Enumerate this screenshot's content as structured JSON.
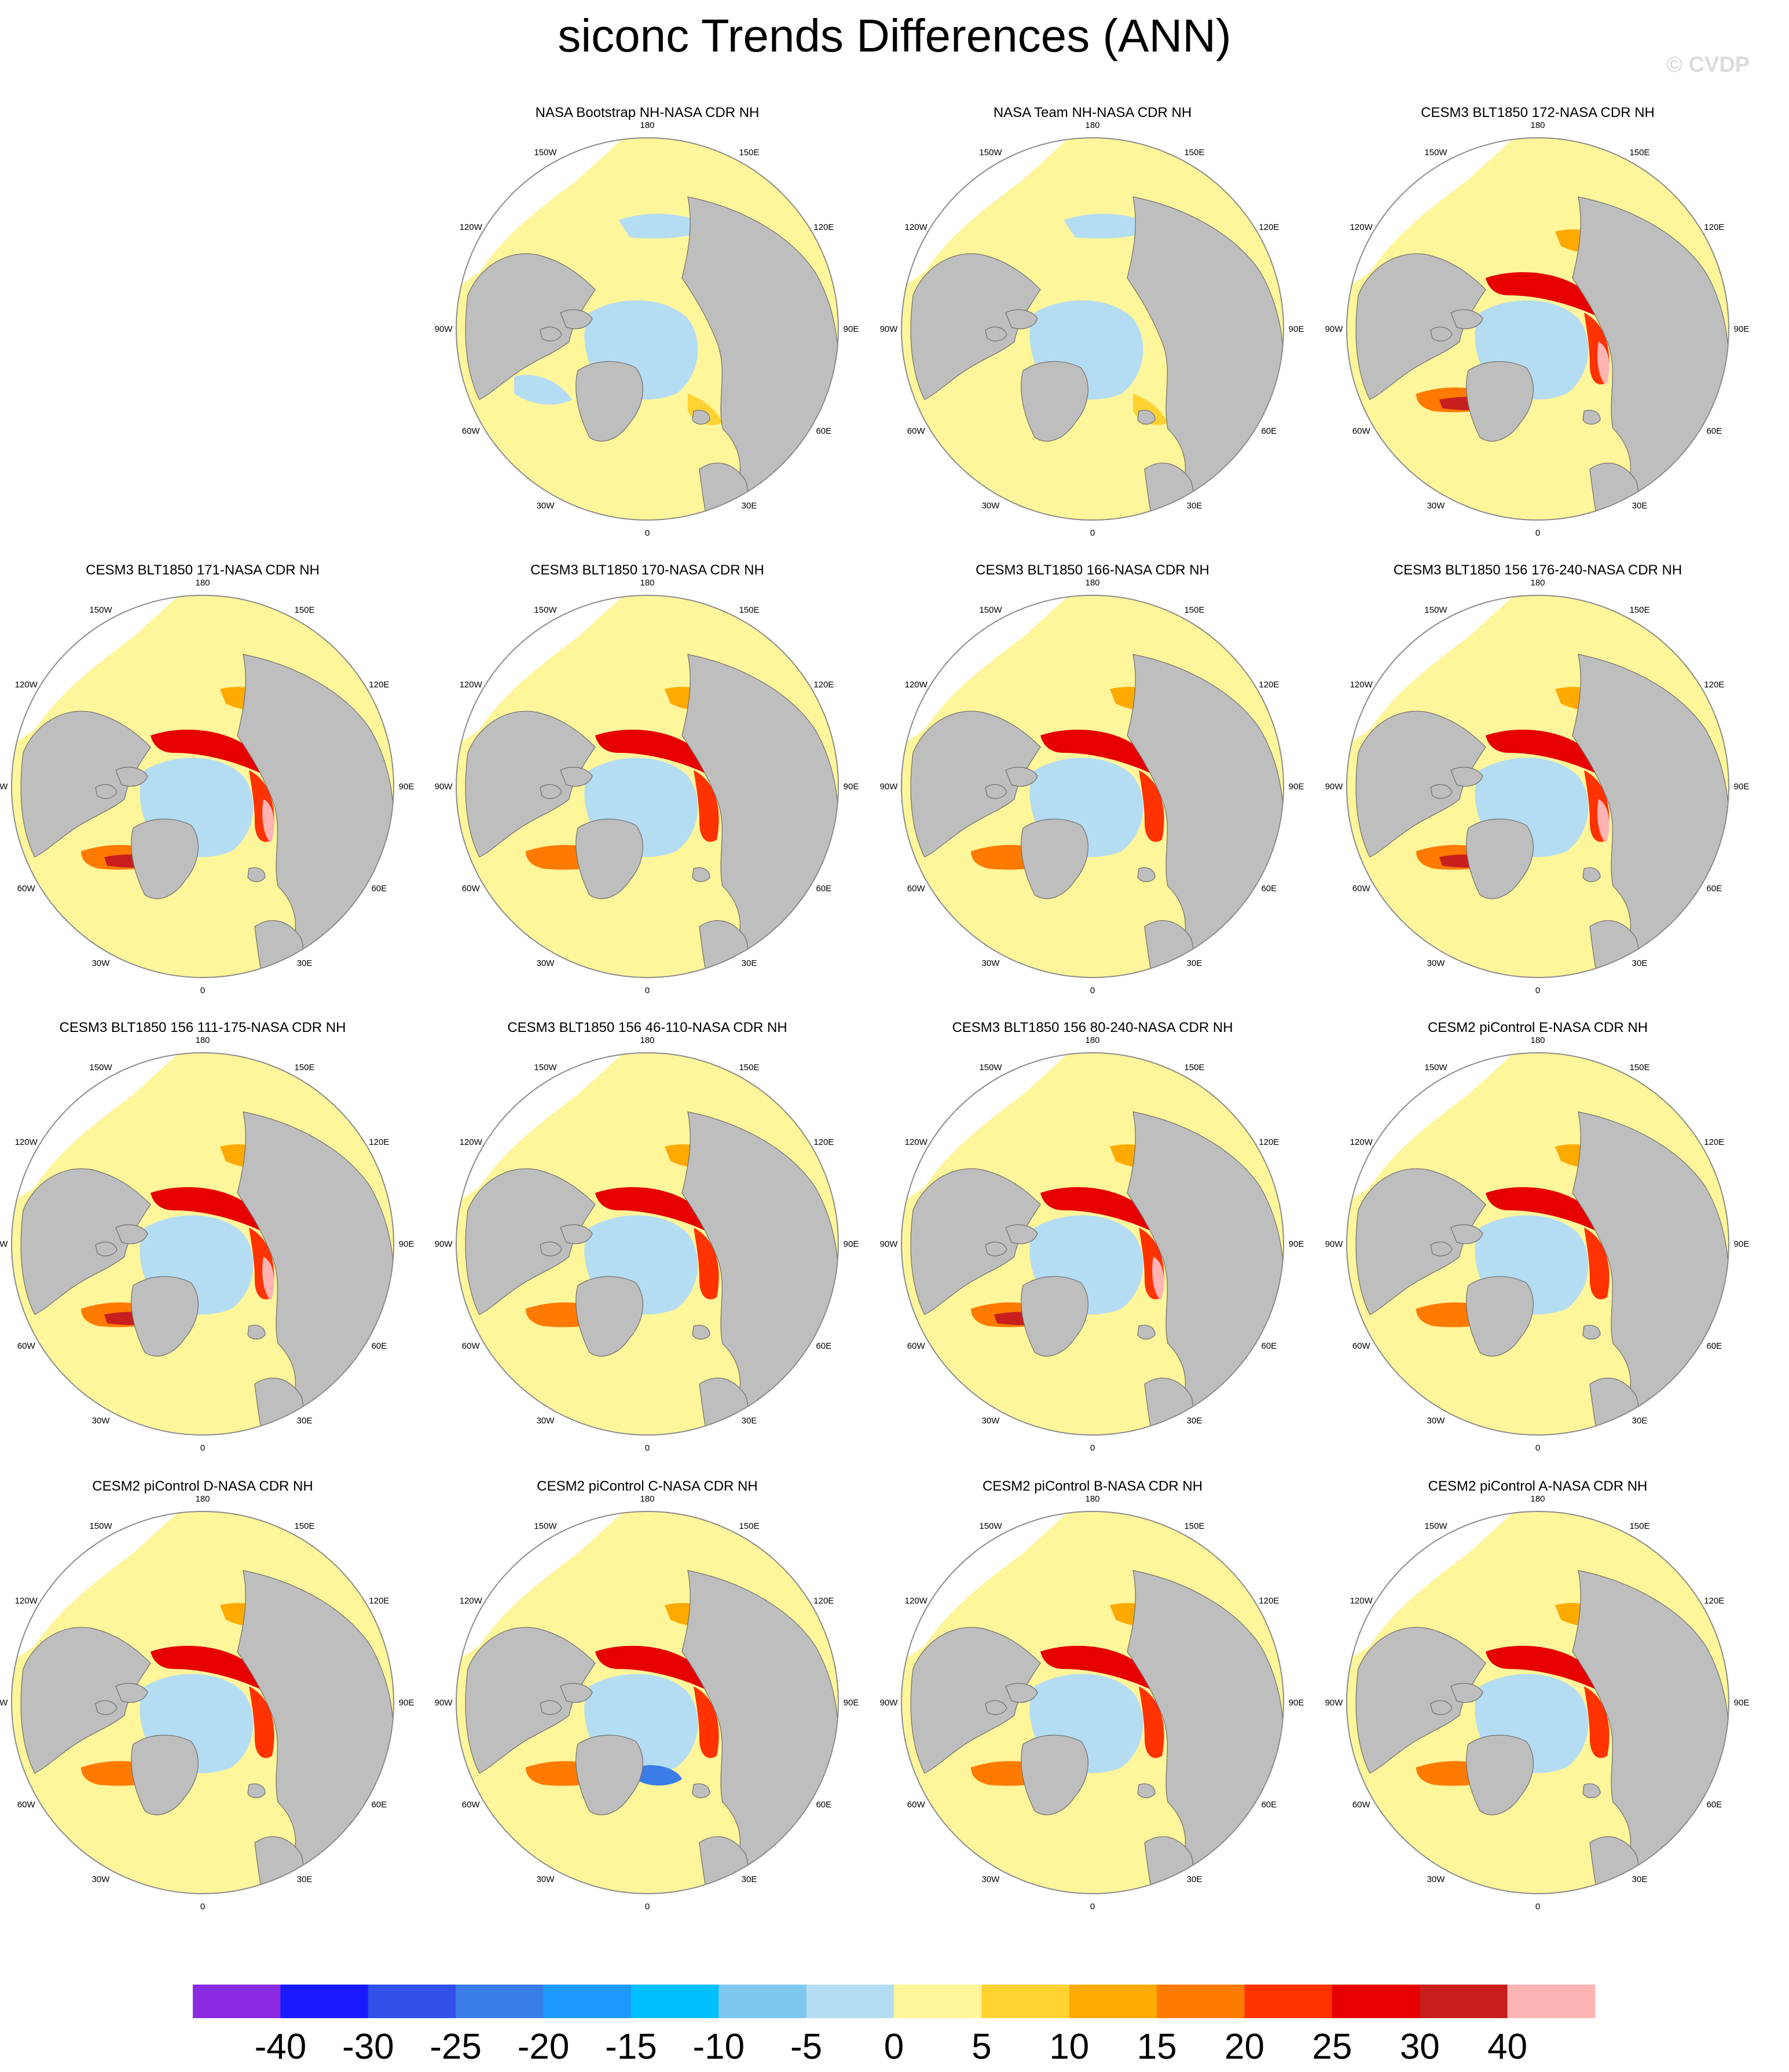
{
  "title": "siconc Trends Differences (ANN)",
  "watermark": "© CVDP",
  "colors": {
    "land": "#bebebe",
    "ocean_open": "#ffffff",
    "coast": "#6e6e6e",
    "frame": "#8c8c8c",
    "zero_pos": "#fff59a",
    "zero_neg": "#b4ddf3"
  },
  "panels": [
    {
      "title": "NASA Bootstrap NH-NASA CDR NH",
      "variant": "obs1"
    },
    {
      "title": "NASA Team NH-NASA CDR NH",
      "variant": "obs2"
    },
    {
      "title": "CESM3 BLT1850 172-NASA CDR NH",
      "variant": "hot"
    },
    {
      "title": "CESM3 BLT1850 171-NASA CDR NH",
      "variant": "hot"
    },
    {
      "title": "CESM3 BLT1850 170-NASA CDR NH",
      "variant": "mid"
    },
    {
      "title": "CESM3 BLT1850 166-NASA CDR NH",
      "variant": "mid"
    },
    {
      "title": "CESM3 BLT1850 156 176-240-NASA CDR NH",
      "variant": "hot"
    },
    {
      "title": "CESM3 BLT1850 156 111-175-NASA CDR NH",
      "variant": "hot"
    },
    {
      "title": "CESM3 BLT1850 156 46-110-NASA CDR NH",
      "variant": "mid"
    },
    {
      "title": "CESM3 BLT1850 156 80-240-NASA CDR NH",
      "variant": "hot"
    },
    {
      "title": "CESM2 piControl E-NASA CDR NH",
      "variant": "mid"
    },
    {
      "title": "CESM2 piControl D-NASA CDR NH",
      "variant": "cool"
    },
    {
      "title": "CESM2 piControl C-NASA CDR NH",
      "variant": "coolneg"
    },
    {
      "title": "CESM2 piControl B-NASA CDR NH",
      "variant": "cool"
    },
    {
      "title": "CESM2 piControl A-NASA CDR NH",
      "variant": "mid"
    }
  ],
  "lon_labels": [
    "180",
    "150E",
    "120E",
    "90E",
    "60E",
    "30E",
    "0",
    "30W",
    "60W",
    "90W",
    "120W",
    "150W"
  ],
  "chart_data": {
    "type": "heatmap",
    "projection": "north polar stereographic",
    "variable": "siconc",
    "colorbar": {
      "tick_labels": [
        "-40",
        "-30",
        "-25",
        "-20",
        "-15",
        "-10",
        "-5",
        "0",
        "5",
        "10",
        "15",
        "20",
        "25",
        "30",
        "40"
      ],
      "colors": [
        "#8a2be2",
        "#1a1aff",
        "#3050e8",
        "#3a7ce8",
        "#1e9aff",
        "#00bfff",
        "#7ec8f0",
        "#b4ddf3",
        "#fff59a",
        "#ffd232",
        "#ffaa00",
        "#ff7a00",
        "#ff3200",
        "#e60000",
        "#c81e1e",
        "#ffb4b4"
      ]
    }
  }
}
